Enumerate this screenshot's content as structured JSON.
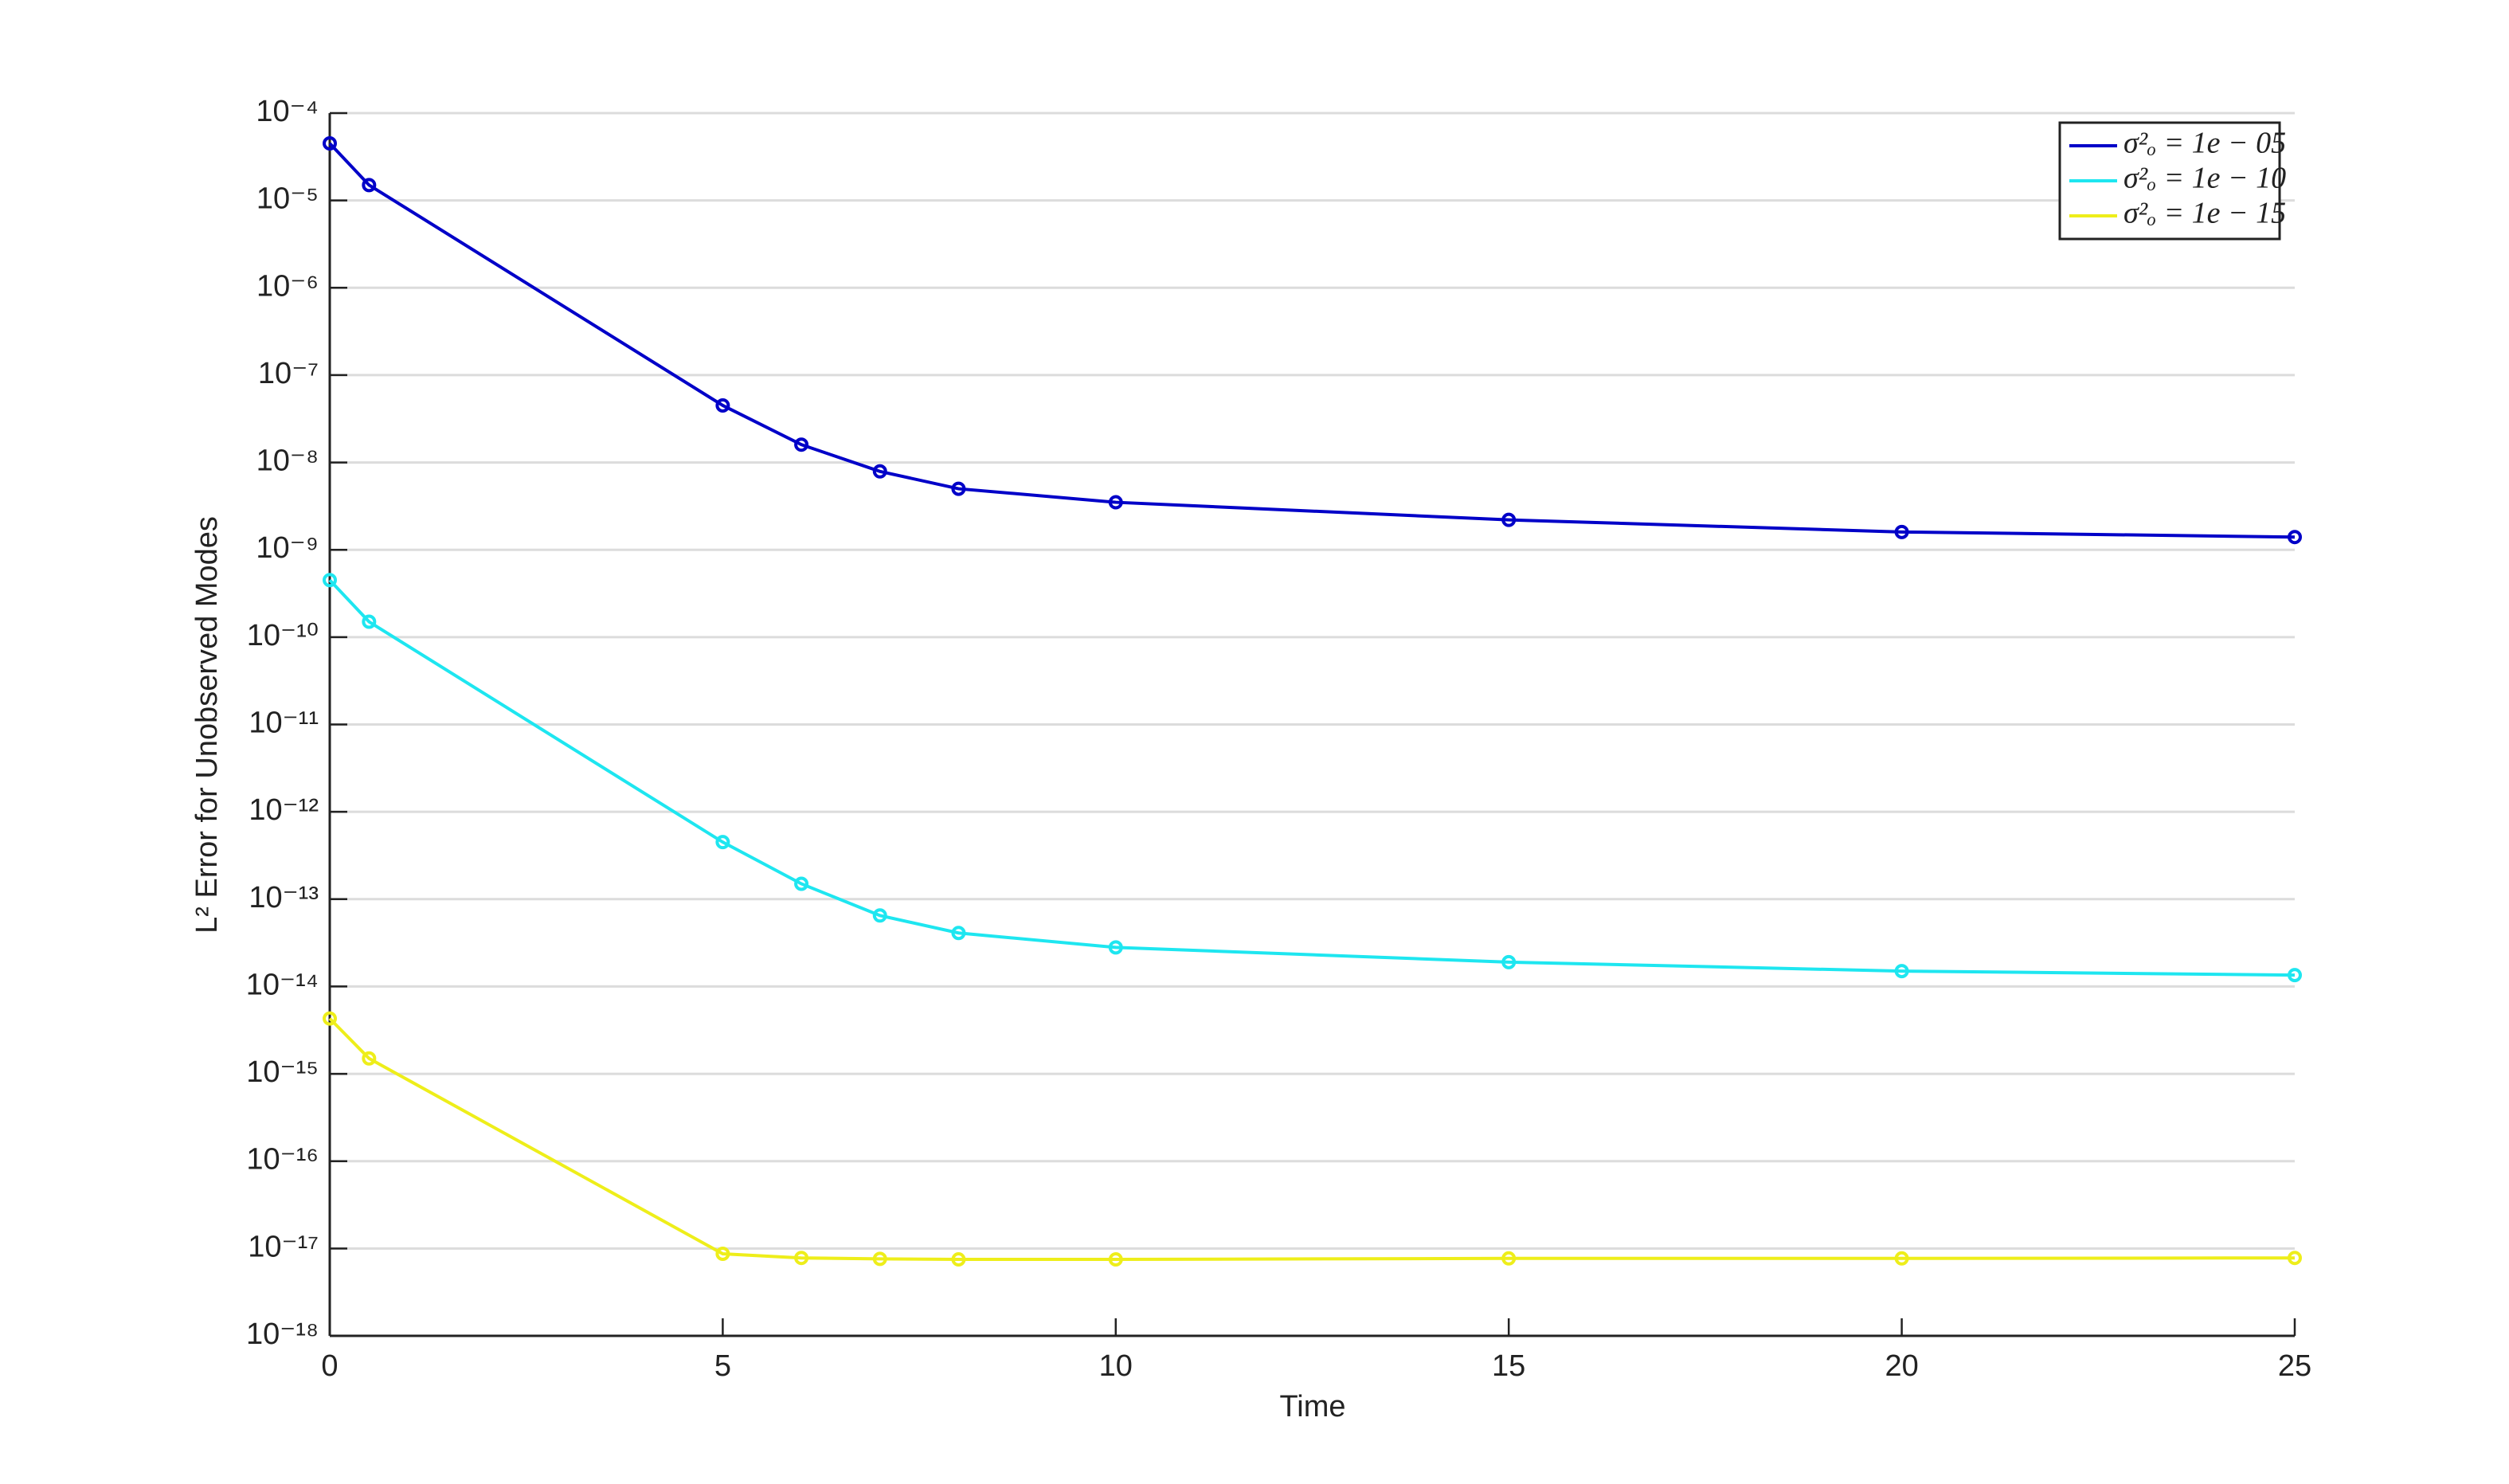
{
  "chart_data": {
    "type": "line",
    "xlabel": "Time",
    "ylabel": "L² Error for Unobserved Modes",
    "x": [
      0,
      0.5,
      5,
      6,
      7,
      8,
      10,
      15,
      20,
      25
    ],
    "series": [
      {
        "name": "σ²ₒ = 1e − 05",
        "color": "#0000c8",
        "values": [
          4.5e-05,
          1.5e-05,
          4.5e-08,
          1.6e-08,
          7.9e-09,
          5e-09,
          3.5e-09,
          2.2e-09,
          1.6e-09,
          1.4e-09
        ]
      },
      {
        "name": "σ²ₒ = 1e − 10",
        "color": "#1ee6f0",
        "values": [
          4.5e-10,
          1.5e-10,
          4.5e-13,
          1.5e-13,
          6.5e-14,
          4.1e-14,
          2.8e-14,
          1.9e-14,
          1.5e-14,
          1.35e-14
        ]
      },
      {
        "name": "σ²ₒ = 1e − 15",
        "color": "#eeee1a",
        "values": [
          4.3e-15,
          1.5e-15,
          8.7e-18,
          7.8e-18,
          7.6e-18,
          7.5e-18,
          7.5e-18,
          7.7e-18,
          7.7e-18,
          7.8e-18
        ]
      }
    ],
    "xlim": [
      0,
      25
    ],
    "xticks": [
      0,
      5,
      10,
      15,
      20,
      25
    ],
    "ylim": [
      1e-18,
      0.0001
    ],
    "ylog": true,
    "yticks": [
      {
        "value": 1e-18,
        "label": "10⁻¹⁸"
      },
      {
        "value": 1e-17,
        "label": "10⁻¹⁷"
      },
      {
        "value": 1e-16,
        "label": "10⁻¹⁶"
      },
      {
        "value": 1e-15,
        "label": "10⁻¹⁵"
      },
      {
        "value": 1e-14,
        "label": "10⁻¹⁴"
      },
      {
        "value": 1e-13,
        "label": "10⁻¹³"
      },
      {
        "value": 1e-12,
        "label": "10⁻¹²"
      },
      {
        "value": 1e-11,
        "label": "10⁻¹¹"
      },
      {
        "value": 1e-10,
        "label": "10⁻¹⁰"
      },
      {
        "value": 1e-09,
        "label": "10⁻⁹"
      },
      {
        "value": 1e-08,
        "label": "10⁻⁸"
      },
      {
        "value": 1e-07,
        "label": "10⁻⁷"
      },
      {
        "value": 1e-06,
        "label": "10⁻⁶"
      },
      {
        "value": 1e-05,
        "label": "10⁻⁵"
      },
      {
        "value": 0.0001,
        "label": "10⁻⁴"
      }
    ],
    "grid": true,
    "markers": true,
    "legend": "upper right"
  }
}
